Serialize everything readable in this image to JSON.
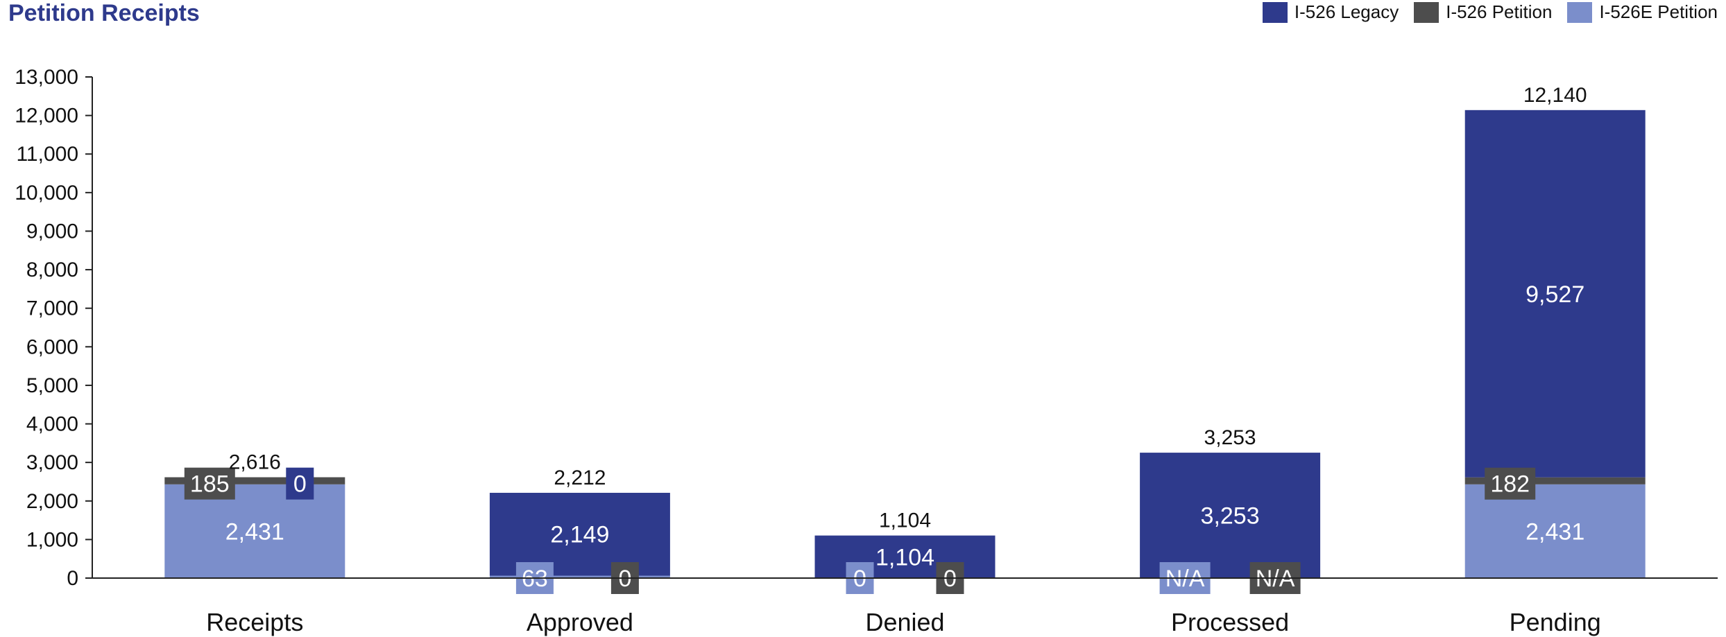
{
  "title": "Petition Receipts",
  "legend": [
    {
      "label": "I-526 Legacy",
      "color": "#2E3A8C"
    },
    {
      "label": "I-526 Petition",
      "color": "#4D4D4D"
    },
    {
      "label": "I-526E Petition",
      "color": "#7B8ECB"
    }
  ],
  "chart_data": {
    "type": "bar",
    "stacked": true,
    "title": "Petition Receipts",
    "xlabel": "",
    "ylabel": "",
    "ylim": [
      0,
      13000
    ],
    "yticks": [
      0,
      1000,
      2000,
      3000,
      4000,
      5000,
      6000,
      7000,
      8000,
      9000,
      10000,
      11000,
      12000,
      13000
    ],
    "ytick_labels": [
      "0",
      "1,000",
      "2,000",
      "3,000",
      "4,000",
      "5,000",
      "6,000",
      "7,000",
      "8,000",
      "9,000",
      "10,000",
      "11,000",
      "12,000",
      "13,000"
    ],
    "grid": false,
    "legend_position": "top-right",
    "categories": [
      "Receipts",
      "Approved",
      "Denied",
      "Processed",
      "Pending"
    ],
    "series": [
      {
        "name": "I-526E Petition",
        "color": "#7B8ECB",
        "values": [
          2431,
          63,
          0,
          null,
          2431
        ],
        "labels": [
          "2,431",
          "63",
          "0",
          "N/A",
          "2,431"
        ]
      },
      {
        "name": "I-526 Petition",
        "color": "#4D4D4D",
        "values": [
          185,
          0,
          0,
          null,
          182
        ],
        "labels": [
          "185",
          "0",
          "0",
          "N/A",
          "182"
        ]
      },
      {
        "name": "I-526 Legacy",
        "color": "#2E3A8C",
        "values": [
          0,
          2149,
          1104,
          3253,
          9527
        ],
        "labels": [
          "0",
          "2,149",
          "1,104",
          "3,253",
          "9,527"
        ]
      }
    ],
    "totals": [
      2616,
      2212,
      1104,
      3253,
      12140
    ],
    "total_labels": [
      "2,616",
      "2,212",
      "1,104",
      "3,253",
      "12,140"
    ]
  }
}
